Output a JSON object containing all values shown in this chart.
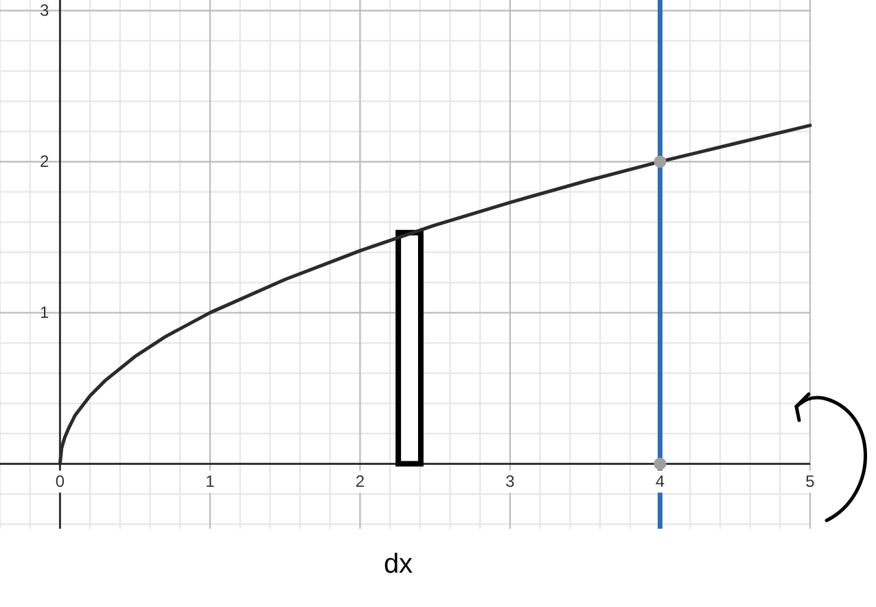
{
  "chart_data": {
    "type": "line",
    "xlabel": "dx",
    "xlim": [
      -0.4,
      5
    ],
    "ylim": [
      -0.43,
      3.07
    ],
    "xticks": [
      0,
      1,
      2,
      3,
      4,
      5
    ],
    "yticks": [
      {
        "value": 0,
        "label": null
      },
      1,
      2,
      3
    ],
    "grid": true,
    "series": [
      {
        "color": "#2b2b2b",
        "x": [
          0,
          0.01,
          0.03,
          0.06,
          0.1,
          0.2,
          0.3,
          0.5,
          0.7,
          1,
          1.5,
          2,
          2.5,
          3,
          3.5,
          4,
          4.5,
          5
        ],
        "values": [
          0,
          0.1,
          0.17,
          0.24,
          0.32,
          0.45,
          0.55,
          0.71,
          0.84,
          1,
          1.22,
          1.41,
          1.58,
          1.73,
          1.87,
          2,
          2.12,
          2.24
        ]
      },
      {
        "type": "bar",
        "color": "#000000",
        "x": [
          2.33
        ],
        "values": [
          1.53
        ]
      },
      {
        "type": "scatter",
        "color": "#a0a0a0",
        "x": [
          4,
          4
        ],
        "values": [
          2,
          0
        ]
      }
    ],
    "ref_lines": [
      {
        "axis": "x",
        "value": 4,
        "color": "#2f6db5"
      }
    ]
  }
}
